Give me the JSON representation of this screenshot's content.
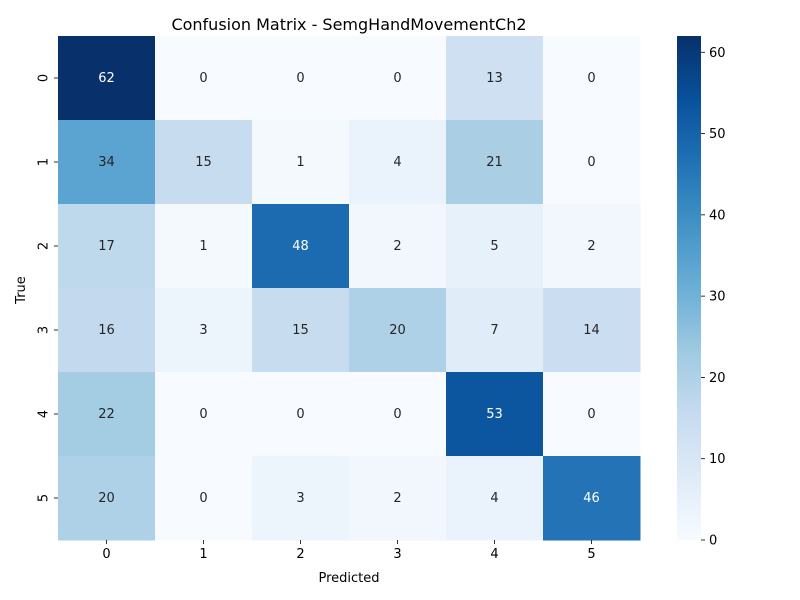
{
  "chart_data": {
    "type": "heatmap",
    "title": "Confusion Matrix - SemgHandMovementCh2",
    "xlabel": "Predicted",
    "ylabel": "True",
    "x_categories": [
      "0",
      "1",
      "2",
      "3",
      "4",
      "5"
    ],
    "y_categories": [
      "0",
      "1",
      "2",
      "3",
      "4",
      "5"
    ],
    "values": [
      [
        62,
        0,
        0,
        0,
        13,
        0
      ],
      [
        34,
        15,
        1,
        4,
        21,
        0
      ],
      [
        17,
        1,
        48,
        2,
        5,
        2
      ],
      [
        16,
        3,
        15,
        20,
        7,
        14
      ],
      [
        22,
        0,
        0,
        0,
        53,
        0
      ],
      [
        20,
        0,
        3,
        2,
        4,
        46
      ]
    ],
    "colorbar": {
      "min": 0,
      "max": 62,
      "ticks": [
        0,
        10,
        20,
        30,
        40,
        50,
        60
      ]
    },
    "colormap": "Blues"
  }
}
